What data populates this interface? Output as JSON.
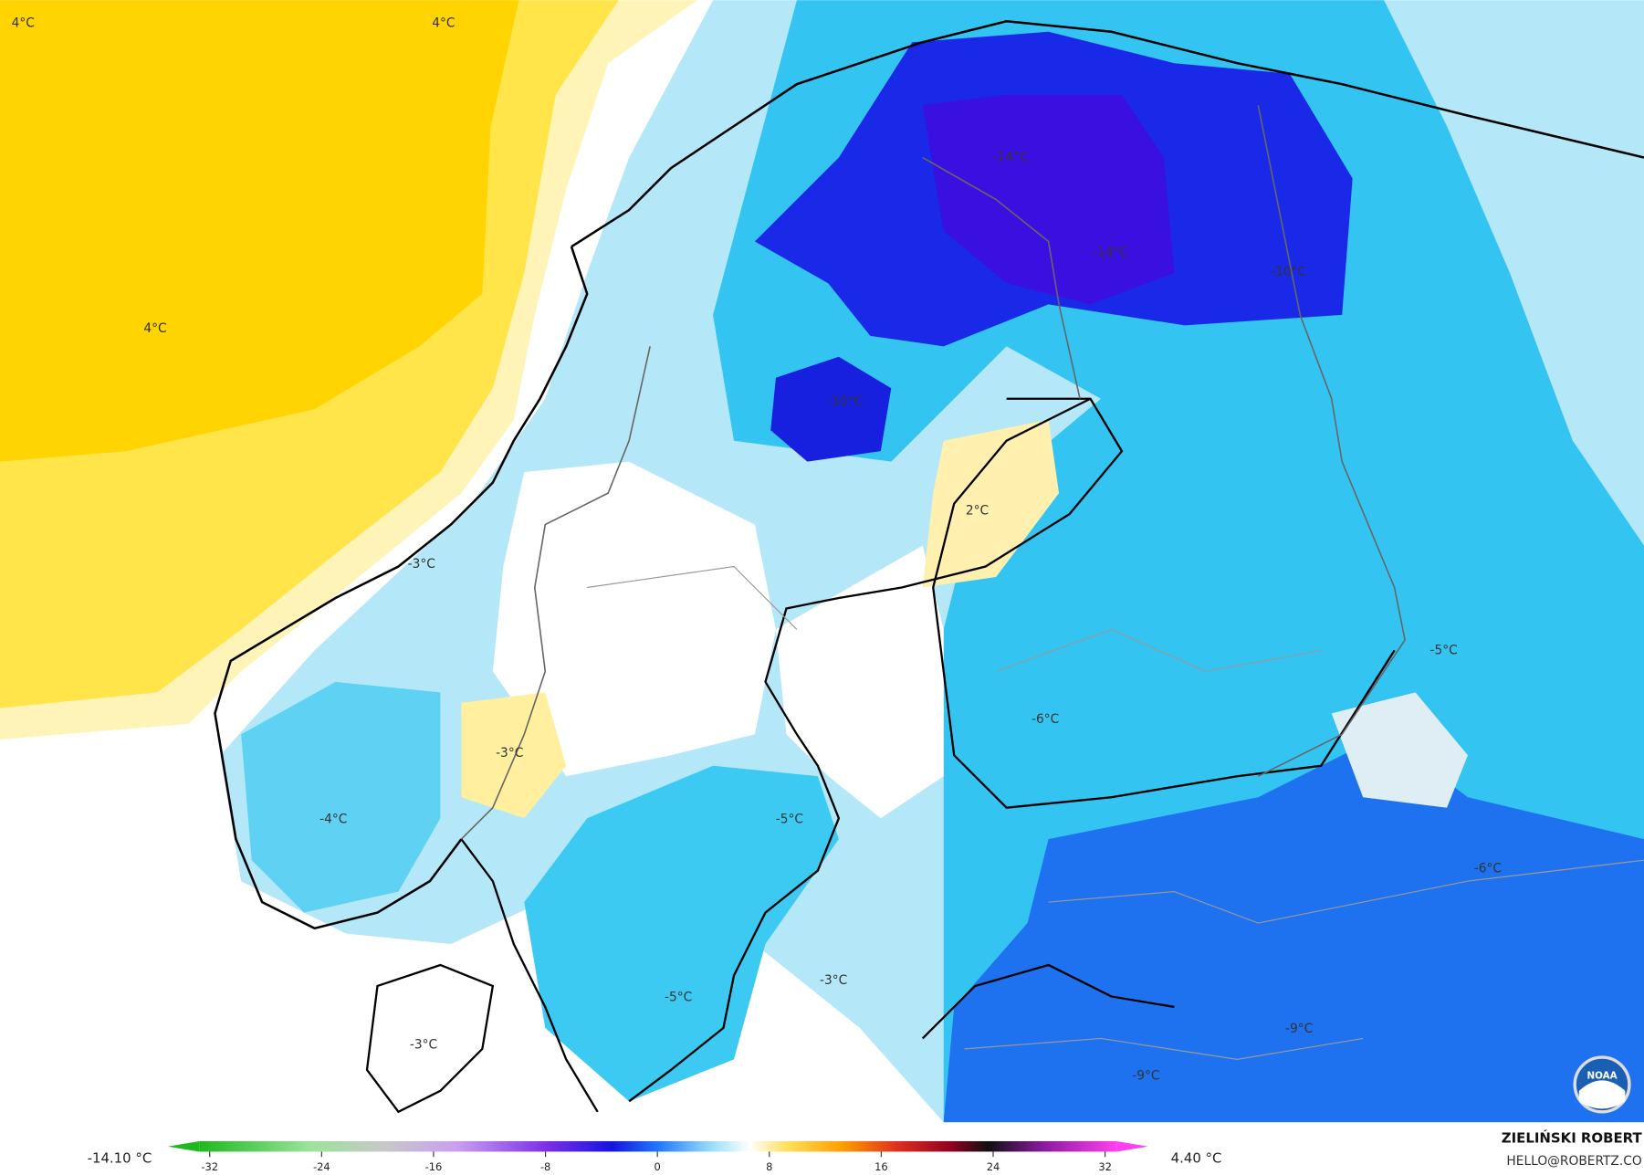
{
  "map_labels": [
    "4°C",
    "4°C",
    "4°C",
    "-14°C",
    "-14°C",
    "-10°C",
    "-10°C",
    "2°C",
    "-3°C",
    "-3°C",
    "-4°C",
    "-5°C",
    "-6°C",
    "-5°C",
    "-6°C",
    "-5°C",
    "-3°C",
    "-3°C",
    "-9°C",
    "-9°C"
  ],
  "colorbar": {
    "min_label": "-14.10 °C",
    "max_label": "4.40 °C",
    "ticks": [
      -32,
      -24,
      -16,
      -8,
      0,
      8,
      16,
      24,
      32
    ]
  },
  "credit": {
    "name": "ZIELIŃSKI ROBERT",
    "email": "HELLO@ROBERTZ.CO"
  },
  "logo": "NOAA"
}
